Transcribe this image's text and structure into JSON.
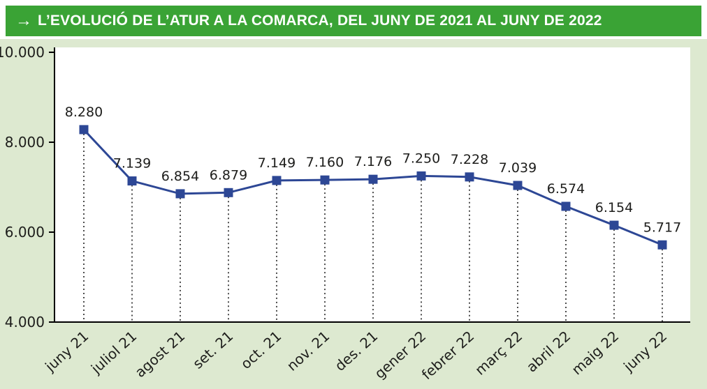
{
  "banner": {
    "arrow": "→",
    "title": "L’EVOLUCIÓ DE L’ATUR A LA COMARCA, DEL JUNY DE 2021 AL JUNY DE 2022"
  },
  "colors": {
    "banner_green": "#3aa335",
    "background_green": "#dde9d0",
    "line_blue": "#2d4795",
    "axis_black": "#000000",
    "text_dark": "#1d1d1b",
    "plot_white": "#ffffff"
  },
  "chart_data": {
    "type": "line",
    "title": "L’EVOLUCIÓ DE L’ATUR A LA COMARCA, DEL JUNY DE 2021 AL JUNY DE 2022",
    "xlabel": "",
    "ylabel": "",
    "categories": [
      "juny 21",
      "juliol 21",
      "agost 21",
      "set. 21",
      "oct. 21",
      "nov. 21",
      "des. 21",
      "gener 22",
      "febrer 22",
      "març 22",
      "abril 22",
      "maig 22",
      "juny 22"
    ],
    "values": [
      8280,
      7139,
      6854,
      6879,
      7149,
      7160,
      7176,
      7250,
      7228,
      7039,
      6574,
      6154,
      5717
    ],
    "value_labels": [
      "8.280",
      "7.139",
      "6.854",
      "6.879",
      "7.149",
      "7.160",
      "7.176",
      "7.250",
      "7.228",
      "7.039",
      "6.574",
      "6.154",
      "5.717"
    ],
    "ylim": [
      4000,
      10000
    ],
    "yticks": [
      4000,
      6000,
      8000,
      10000
    ],
    "ytick_labels": [
      "4.000",
      "6.000",
      "8.000",
      "10.000"
    ],
    "grid": false,
    "legend": "none",
    "marker": "square",
    "point_guides": "dotted-vertical"
  }
}
